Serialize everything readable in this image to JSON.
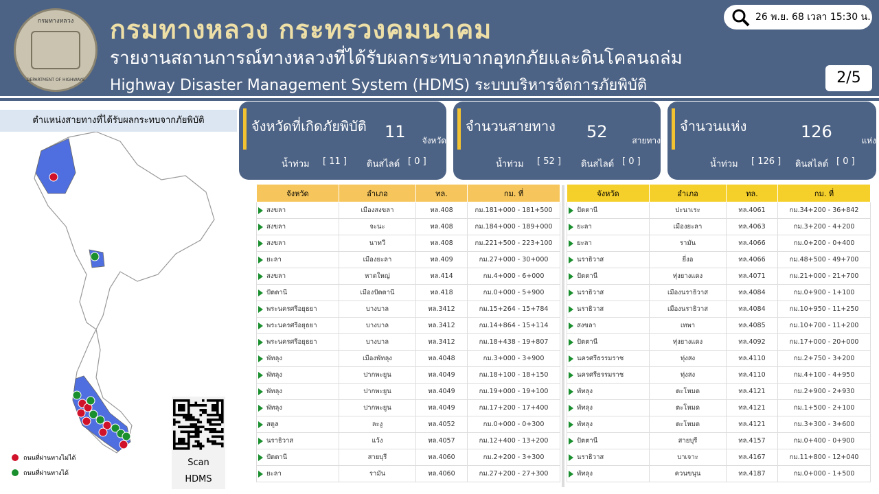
{
  "header": {
    "logo_text": "กรมทางหลวง",
    "logo_subtext": "DEPARTMENT OF HIGHWAYS",
    "title": "กรมทางหลวง กระทรวงคมนาคม",
    "subtitle": "รายงานสถานการณ์ทางหลวงที่ได้รับผลกระทบจากอุทกภัยและดินโคลนถล่ม",
    "system": "Highway Disaster Management System (HDMS) ระบบบริหารจัดการภัยพิบัติ",
    "datetime": "26 พ.ย. 68 เวลา 15:30 น.",
    "page": "2/5"
  },
  "map": {
    "title": "ตำแหน่งสายทางที่ได้รับผลกระทบจากภัยพิบัติ",
    "legend": [
      {
        "label": "ถนนที่ผ่านทางไม่ได้",
        "color": "#d0122a"
      },
      {
        "label": "ถนนที่ผ่านทางได้",
        "color": "#1a8f2e"
      }
    ],
    "qr": [
      "Scan",
      "HDMS"
    ]
  },
  "cards": [
    {
      "title": "จังหวัดที่เกิดภัยพิบัติ",
      "value": "11",
      "unit": "จังหวัด",
      "flood_label": "น้ำท่วม",
      "flood_value": "[ 11 ]",
      "slide_label": "ดินสไลด์",
      "slide_value": "[ 0 ]"
    },
    {
      "title": "จำนวนสายทาง",
      "value": "52",
      "unit": "สายทาง",
      "flood_label": "น้ำท่วม",
      "flood_value": "[ 52 ]",
      "slide_label": "ดินสไลด์",
      "slide_value": "[ 0 ]"
    },
    {
      "title": "จำนวนแห่ง",
      "value": "126",
      "unit": "แห่ง",
      "flood_label": "น้ำท่วม",
      "flood_value": "[ 126 ]",
      "slide_label": "ดินสไลด์",
      "slide_value": "[ 0 ]"
    }
  ],
  "tables": [
    {
      "columns": [
        "จังหวัด",
        "อำเภอ",
        "ทล.",
        "กม. ที่"
      ],
      "rows": [
        [
          "สงขลา",
          "เมืองสงขลา",
          "ทล.408",
          "กม.181+000 - 181+500"
        ],
        [
          "สงขลา",
          "จะนะ",
          "ทล.408",
          "กม.184+000 - 189+000"
        ],
        [
          "สงขลา",
          "นาทวี",
          "ทล.408",
          "กม.221+500 - 223+100"
        ],
        [
          "ยะลา",
          "เมืองยะลา",
          "ทล.409",
          "กม.27+000 - 30+000"
        ],
        [
          "สงขลา",
          "หาดใหญ่",
          "ทล.414",
          "กม.4+000 - 6+000"
        ],
        [
          "ปัตตานี",
          "เมืองปัตตานี",
          "ทล.418",
          "กม.0+000 - 5+900"
        ],
        [
          "พระนครศรีอยุธยา",
          "บางบาล",
          "ทล.3412",
          "กม.15+264 - 15+784"
        ],
        [
          "พระนครศรีอยุธยา",
          "บางบาล",
          "ทล.3412",
          "กม.14+864 - 15+114"
        ],
        [
          "พระนครศรีอยุธยา",
          "บางบาล",
          "ทล.3412",
          "กม.18+438 - 19+807"
        ],
        [
          "พัทลุง",
          "เมืองพัทลุง",
          "ทล.4048",
          "กม.3+000 - 3+900"
        ],
        [
          "พัทลุง",
          "ปากพะยูน",
          "ทล.4049",
          "กม.18+100 - 18+150"
        ],
        [
          "พัทลุง",
          "ปากพะยูน",
          "ทล.4049",
          "กม.19+000 - 19+100"
        ],
        [
          "พัทลุง",
          "ปากพะยูน",
          "ทล.4049",
          "กม.17+200 - 17+400"
        ],
        [
          "สตูล",
          "ละงู",
          "ทล.4052",
          "กม.0+000 - 0+300"
        ],
        [
          "นราธิวาส",
          "แว้ง",
          "ทล.4057",
          "กม.12+400 - 13+200"
        ],
        [
          "ปัตตานี",
          "สายบุรี",
          "ทล.4060",
          "กม.2+200 - 3+300"
        ],
        [
          "ยะลา",
          "รามัน",
          "ทล.4060",
          "กม.27+200 - 27+300"
        ]
      ]
    },
    {
      "columns": [
        "จังหวัด",
        "อำเภอ",
        "ทล.",
        "กม. ที่"
      ],
      "rows": [
        [
          "ปัตตานี",
          "ปะนาเระ",
          "ทล.4061",
          "กม.34+200 - 36+842"
        ],
        [
          "ยะลา",
          "เมืองยะลา",
          "ทล.4063",
          "กม.3+200 - 4+200"
        ],
        [
          "ยะลา",
          "รามัน",
          "ทล.4066",
          "กม.0+200 - 0+400"
        ],
        [
          "นราธิวาส",
          "ยี่งอ",
          "ทล.4066",
          "กม.48+500 - 49+700"
        ],
        [
          "ปัตตานี",
          "ทุ่งยางแดง",
          "ทล.4071",
          "กม.21+000 - 21+700"
        ],
        [
          "นราธิวาส",
          "เมืองนราธิวาส",
          "ทล.4084",
          "กม.0+900 - 1+100"
        ],
        [
          "นราธิวาส",
          "เมืองนราธิวาส",
          "ทล.4084",
          "กม.10+950 - 11+250"
        ],
        [
          "สงขลา",
          "เทพา",
          "ทล.4085",
          "กม.10+700 - 11+200"
        ],
        [
          "ปัตตานี",
          "ทุ่งยางแดง",
          "ทล.4092",
          "กม.17+000 - 20+000"
        ],
        [
          "นครศรีธรรมราช",
          "ทุ่งสง",
          "ทล.4110",
          "กม.2+750 - 3+200"
        ],
        [
          "นครศรีธรรมราช",
          "ทุ่งสง",
          "ทล.4110",
          "กม.4+100 - 4+950"
        ],
        [
          "พัทลุง",
          "ตะโหมด",
          "ทล.4121",
          "กม.2+900 - 2+930"
        ],
        [
          "พัทลุง",
          "ตะโหมด",
          "ทล.4121",
          "กม.1+500 - 2+100"
        ],
        [
          "พัทลุง",
          "ตะโหมด",
          "ทล.4121",
          "กม.3+300 - 3+600"
        ],
        [
          "ปัตตานี",
          "สายบุรี",
          "ทล.4157",
          "กม.0+400 - 0+900"
        ],
        [
          "นราธิวาส",
          "บาเจาะ",
          "ทล.4167",
          "กม.11+800 - 12+040"
        ],
        [
          "พัทลุง",
          "ควนขนุน",
          "ทล.4187",
          "กม.0+000 - 1+500"
        ]
      ]
    }
  ]
}
